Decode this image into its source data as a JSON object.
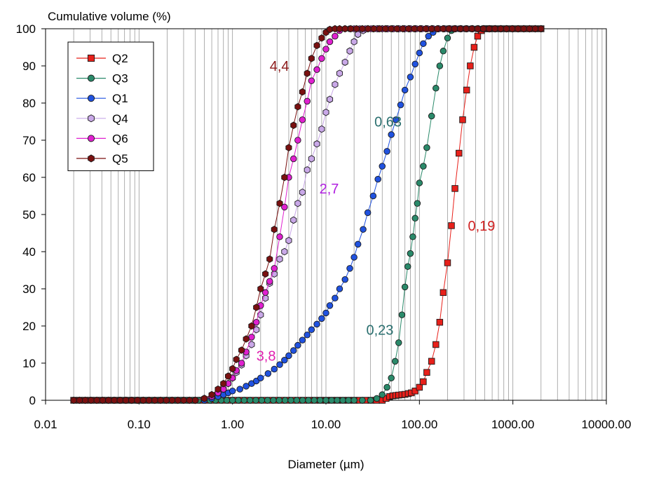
{
  "chart_data": {
    "type": "scatter",
    "title": "",
    "xlabel": "Diameter (µm)",
    "ylabel": "Cumulative volume (%)",
    "x_scale": "log",
    "xlim": [
      0.01,
      10000
    ],
    "ylim": [
      0,
      100
    ],
    "x_ticks": [
      "0.01",
      "0.10",
      "1.00",
      "10.00",
      "100.00",
      "1000.00",
      "10000.00"
    ],
    "y_ticks": [
      "0",
      "10",
      "20",
      "30",
      "40",
      "50",
      "60",
      "70",
      "80",
      "90",
      "100"
    ],
    "grid": {
      "x_minor": true,
      "y": false
    },
    "legend_position": "top-left",
    "series": [
      {
        "name": "Q2",
        "color": "#e8201a",
        "marker": "square",
        "x": [
          0.02,
          40,
          44,
          48,
          52,
          56,
          60,
          65,
          70,
          76,
          82,
          90,
          100,
          110,
          120,
          135,
          150,
          165,
          180,
          200,
          220,
          240,
          265,
          290,
          320,
          350,
          385,
          420,
          460,
          500,
          550,
          600,
          2000
        ],
        "y": [
          0,
          0,
          0.5,
          1,
          1.2,
          1.3,
          1.4,
          1.5,
          1.6,
          1.8,
          2,
          2.5,
          3.5,
          5,
          7.5,
          10.5,
          15,
          21,
          29,
          37,
          47,
          57,
          66.5,
          75.5,
          83.5,
          90,
          95,
          98,
          99.5,
          100,
          100,
          100,
          100
        ]
      },
      {
        "name": "Q3",
        "color": "#2a8a6a",
        "marker": "circle",
        "x": [
          0.02,
          1.0,
          10,
          20,
          30,
          35,
          40,
          45,
          50,
          55,
          60,
          65,
          70,
          75,
          80,
          85,
          90,
          95,
          100,
          110,
          120,
          135,
          150,
          165,
          180,
          200,
          220,
          240,
          2000
        ],
        "y": [
          0,
          0,
          0,
          0,
          0,
          0.5,
          1.5,
          3.5,
          6,
          10.5,
          15.5,
          23,
          30.5,
          36,
          39.5,
          44,
          49,
          53,
          58.5,
          63,
          68,
          76.5,
          84,
          90,
          94,
          97.5,
          99.5,
          100,
          100
        ]
      },
      {
        "name": "Q1",
        "color": "#2052e0",
        "marker": "circle",
        "x": [
          0.5,
          0.6,
          0.7,
          0.8,
          0.9,
          1.0,
          1.2,
          1.4,
          1.6,
          1.8,
          2.0,
          2.4,
          2.8,
          3.2,
          3.6,
          4.0,
          4.5,
          5.0,
          5.6,
          6.3,
          7.0,
          8.0,
          9.0,
          10,
          11,
          12.5,
          14,
          16,
          18,
          20,
          22,
          25,
          28,
          32,
          36,
          40,
          45,
          50,
          56,
          63,
          70,
          80,
          90,
          100,
          110,
          125,
          140,
          160,
          180,
          200,
          2000
        ],
        "y": [
          0,
          0.5,
          1,
          1.5,
          2,
          2.5,
          3,
          3.8,
          4.5,
          5.2,
          6,
          7.2,
          8.4,
          9.6,
          10.8,
          12,
          13.4,
          14.8,
          16.2,
          17.6,
          19,
          20.5,
          22,
          23.5,
          25.5,
          27.5,
          30,
          32.5,
          35.5,
          38.5,
          42,
          46,
          50.5,
          55,
          59.5,
          63,
          67,
          71.5,
          75.5,
          79.5,
          83.5,
          87,
          90.5,
          93.5,
          96,
          98,
          99,
          100,
          100,
          100,
          100
        ]
      },
      {
        "name": "Q4",
        "color": "#c9a8e8",
        "marker": "hexagon",
        "x": [
          0.4,
          0.5,
          0.6,
          0.7,
          0.8,
          0.9,
          1.0,
          1.1,
          1.25,
          1.4,
          1.6,
          1.8,
          2.0,
          2.25,
          2.5,
          2.8,
          3.2,
          3.6,
          4.0,
          4.5,
          5.0,
          5.6,
          6.3,
          7.0,
          8.0,
          9.0,
          10,
          11,
          12.5,
          14,
          16,
          18,
          20,
          22,
          25,
          28,
          32,
          36,
          40,
          45,
          2000
        ],
        "y": [
          0,
          0.5,
          1,
          2,
          3,
          4.5,
          6,
          7.5,
          9.5,
          12,
          15,
          19,
          23,
          27.5,
          31.5,
          34,
          38,
          40,
          43,
          48.5,
          53,
          56,
          62,
          65,
          69,
          73,
          77.5,
          81,
          85,
          88,
          91,
          94,
          96.5,
          98.5,
          99.5,
          100,
          100,
          100,
          100,
          100,
          100
        ]
      },
      {
        "name": "Q6",
        "color": "#e020d0",
        "marker": "circle",
        "x": [
          0.4,
          0.5,
          0.6,
          0.7,
          0.8,
          0.9,
          1.0,
          1.1,
          1.25,
          1.4,
          1.6,
          1.8,
          2.0,
          2.25,
          2.5,
          2.8,
          3.2,
          3.6,
          4.0,
          4.5,
          5.0,
          5.6,
          6.3,
          7.0,
          8.0,
          9.0,
          10,
          11,
          12.5,
          14,
          16,
          18,
          20,
          2000
        ],
        "y": [
          0,
          0.5,
          1,
          2,
          3,
          4.5,
          6,
          8,
          10,
          13,
          17,
          21,
          25.5,
          29,
          32,
          35.5,
          44,
          52,
          60,
          65,
          70,
          75.5,
          80.5,
          86,
          89,
          92,
          94.5,
          96.5,
          98,
          99.5,
          100,
          100,
          100,
          100
        ]
      },
      {
        "name": "Q5",
        "color": "#7a1010",
        "marker": "hexagon",
        "x": [
          0.02,
          0.4,
          0.5,
          0.6,
          0.7,
          0.8,
          0.9,
          1.0,
          1.1,
          1.25,
          1.4,
          1.6,
          1.8,
          2.0,
          2.25,
          2.5,
          2.8,
          3.2,
          3.6,
          4.0,
          4.5,
          5.0,
          5.6,
          6.3,
          7.0,
          8.0,
          9.0,
          10,
          11,
          12.5,
          14,
          16,
          2000
        ],
        "y": [
          0,
          0,
          0.5,
          1.5,
          3,
          4.5,
          6.5,
          8.5,
          11,
          13.5,
          16.5,
          20,
          25,
          30,
          34,
          38,
          46,
          53,
          60,
          68,
          74,
          79,
          83,
          88,
          92,
          95.5,
          97.5,
          99,
          99.8,
          100,
          100,
          100,
          100
        ]
      }
    ],
    "annotations": [
      {
        "text": "4,4",
        "color": "#8b1a1a",
        "x": 2.5,
        "y": 90
      },
      {
        "text": "0,63",
        "color": "#2a6f6f",
        "x": 33,
        "y": 75
      },
      {
        "text": "2,7",
        "color": "#b020e0",
        "x": 8.5,
        "y": 57
      },
      {
        "text": "0,19",
        "color": "#d02020",
        "x": 330,
        "y": 47
      },
      {
        "text": "0,23",
        "color": "#2a6f6f",
        "x": 27,
        "y": 19
      },
      {
        "text": "3,8",
        "color": "#e020b0",
        "x": 1.8,
        "y": 12
      }
    ]
  }
}
